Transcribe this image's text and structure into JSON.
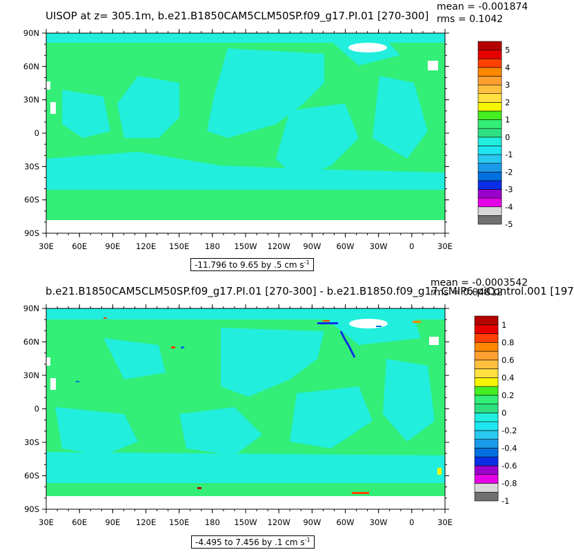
{
  "colors": {
    "land_ocean_zero": "#33ee77",
    "neg_minus_half": "#22eedd",
    "ice": "#ffffff",
    "scale": [
      "#707070",
      "#d8d8d8",
      "#e600e6",
      "#9a00cc",
      "#0a2fe6",
      "#0070e0",
      "#1a9ae8",
      "#28c8f0",
      "#1ee6f0",
      "#22eedd",
      "#2ee080",
      "#33ee77",
      "#44ee22",
      "#f6f600",
      "#ffe040",
      "#ffc040",
      "#ffa030",
      "#ff8800",
      "#ff4000",
      "#e60000",
      "#b40000"
    ]
  },
  "panels": [
    {
      "title": "UISOP at z= 305.1m, b.e21.B1850CAM5CLM50SP.f09_g17.PI.01 [270-300]",
      "stat_mean": "mean = -0.001874",
      "stat_rms": "rms = 0.1042",
      "lat_labels": [
        "90N",
        "60N",
        "30N",
        "0",
        "30S",
        "60S",
        "90S"
      ],
      "lon_labels": [
        "30E",
        "60E",
        "90E",
        "120E",
        "150E",
        "180",
        "150W",
        "120W",
        "90W",
        "60W",
        "30W",
        "0",
        "30E"
      ],
      "range_text": "-11.796 to 9.65 by .5 cm s",
      "range_unit_exp": "-1",
      "colorbar_labels": [
        "5",
        "4",
        "3",
        "2",
        "1",
        "0",
        "-1",
        "-2",
        "-3",
        "-4",
        "-5"
      ]
    },
    {
      "title": "b.e21.B1850CAM5CLM50SP.f09_g17.PI.01 [270-300] - b.e21.B1850.f09_g17.CMIP6-piControl.001 [197",
      "stat_mean": "mean = -0.0003542",
      "stat_rms": "rms = 0.04812",
      "lat_labels": [
        "90N",
        "60N",
        "30N",
        "0",
        "30S",
        "60S",
        "90S"
      ],
      "lon_labels": [
        "30E",
        "60E",
        "90E",
        "120E",
        "150E",
        "180",
        "150W",
        "120W",
        "90W",
        "60W",
        "30W",
        "0",
        "30E"
      ],
      "range_text": "-4.495 to 7.456 by .1 cm s",
      "range_unit_exp": "-1",
      "colorbar_labels": [
        "1",
        "0.8",
        "0.6",
        "0.4",
        "0.2",
        "0",
        "-0.2",
        "-0.4",
        "-0.6",
        "-0.8",
        "-1"
      ]
    }
  ]
}
